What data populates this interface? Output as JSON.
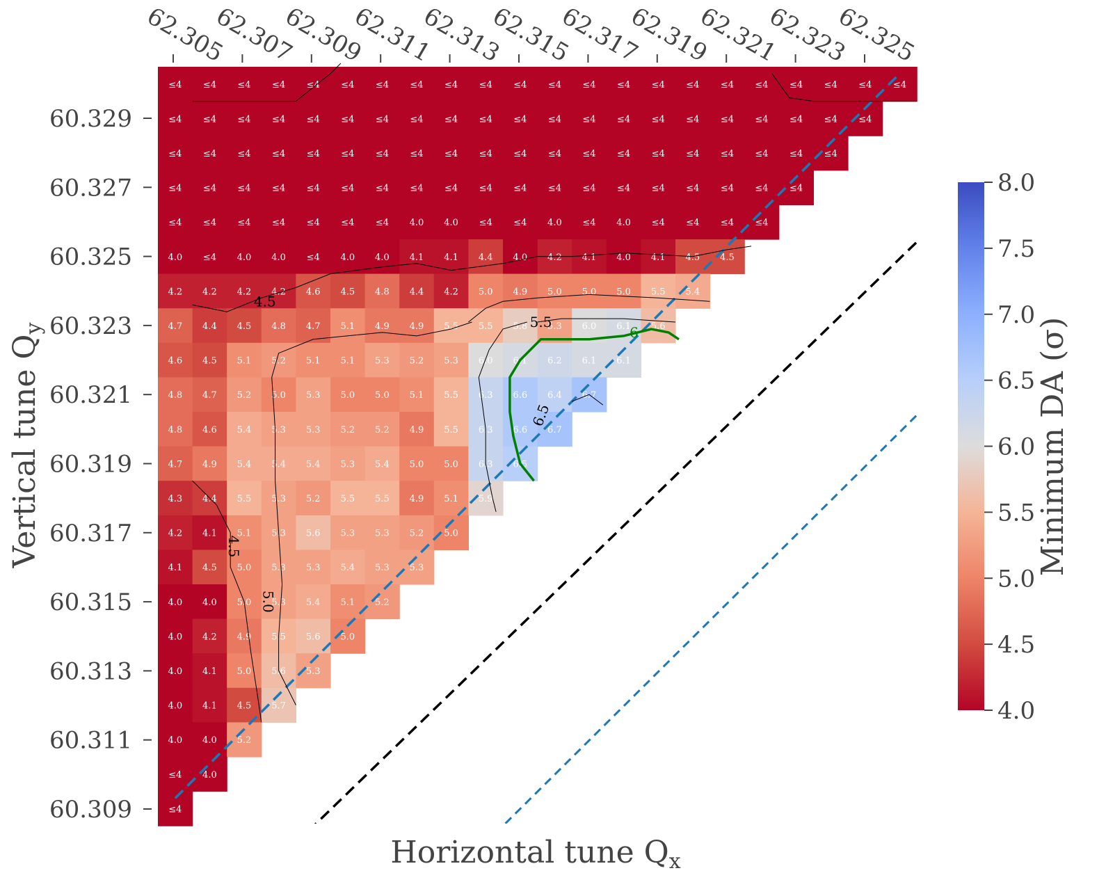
{
  "chart_data": {
    "type": "heatmap",
    "title": "",
    "xlabel": "Horizontal tune Q",
    "xlabel_sub": "x",
    "ylabel": "Vertical tune Q",
    "ylabel_sub": "y",
    "colorbar_label": "Minimum DA (σ)",
    "colorbar_range": [
      4.0,
      8.0
    ],
    "colorbar_ticks": [
      "4.0",
      "4.5",
      "5.0",
      "5.5",
      "6.0",
      "6.5",
      "7.0",
      "7.5",
      "8.0"
    ],
    "colormap": "coolwarm_r",
    "x_values": [
      62.305,
      62.306,
      62.307,
      62.308,
      62.309,
      62.31,
      62.311,
      62.312,
      62.313,
      62.314,
      62.315,
      62.316,
      62.317,
      62.318,
      62.319,
      62.32,
      62.321,
      62.322,
      62.323,
      62.324,
      62.325,
      62.326
    ],
    "x_tick_labels": [
      "62.305",
      "62.307",
      "62.309",
      "62.311",
      "62.313",
      "62.315",
      "62.317",
      "62.319",
      "62.321",
      "62.323",
      "62.325"
    ],
    "y_values": [
      60.33,
      60.329,
      60.328,
      60.327,
      60.326,
      60.325,
      60.324,
      60.323,
      60.322,
      60.321,
      60.32,
      60.319,
      60.318,
      60.317,
      60.316,
      60.315,
      60.314,
      60.313,
      60.312,
      60.311,
      60.31,
      60.309
    ],
    "y_tick_labels": [
      "60.329",
      "60.327",
      "60.325",
      "60.323",
      "60.321",
      "60.319",
      "60.317",
      "60.315",
      "60.313",
      "60.311",
      "60.309"
    ],
    "rows": [
      [
        "≤4",
        "≤4",
        "≤4",
        "≤4",
        "≤4",
        "≤4",
        "≤4",
        "≤4",
        "≤4",
        "≤4",
        "≤4",
        "≤4",
        "≤4",
        "≤4",
        "≤4",
        "≤4",
        "≤4",
        "≤4",
        "≤4",
        "≤4",
        "≤4",
        "≤4"
      ],
      [
        "≤4",
        "≤4",
        "≤4",
        "≤4",
        "≤4",
        "≤4",
        "≤4",
        "≤4",
        "≤4",
        "≤4",
        "≤4",
        "≤4",
        "≤4",
        "≤4",
        "≤4",
        "≤4",
        "≤4",
        "≤4",
        "≤4",
        "≤4",
        "≤4"
      ],
      [
        "≤4",
        "≤4",
        "≤4",
        "≤4",
        "≤4",
        "≤4",
        "≤4",
        "≤4",
        "≤4",
        "≤4",
        "≤4",
        "≤4",
        "≤4",
        "≤4",
        "≤4",
        "≤4",
        "≤4",
        "≤4",
        "≤4",
        "≤4"
      ],
      [
        "≤4",
        "≤4",
        "≤4",
        "≤4",
        "≤4",
        "≤4",
        "≤4",
        "≤4",
        "≤4",
        "≤4",
        "≤4",
        "≤4",
        "≤4",
        "≤4",
        "≤4",
        "≤4",
        "≤4",
        "≤4",
        "≤4"
      ],
      [
        "≤4",
        "≤4",
        "≤4",
        "≤4",
        "≤4",
        "≤4",
        "≤4",
        "4.0",
        "4.0",
        "≤4",
        "≤4",
        "4.0",
        "≤4",
        "4.0",
        "≤4",
        "≤4",
        "≤4",
        "≤4"
      ],
      [
        "4.0",
        "≤4",
        "4.0",
        "4.0",
        "≤4",
        "4.0",
        "4.0",
        "4.1",
        "4.1",
        "4.4",
        "4.0",
        "4.2",
        "4.1",
        "4.0",
        "4.1",
        "4.5",
        "4.5"
      ],
      [
        "4.2",
        "4.2",
        "4.2",
        "4.2",
        "4.6",
        "4.5",
        "4.8",
        "4.4",
        "4.2",
        "5.0",
        "4.9",
        "5.0",
        "5.0",
        "5.0",
        "5.5",
        "5.4"
      ],
      [
        "4.7",
        "4.4",
        "4.5",
        "4.8",
        "4.7",
        "5.1",
        "4.9",
        "4.9",
        "5.5",
        "5.5",
        "5.8",
        "5.3",
        "6.0",
        "6.1",
        "5.6"
      ],
      [
        "4.6",
        "4.5",
        "5.1",
        "5.2",
        "5.1",
        "5.1",
        "5.3",
        "5.2",
        "5.3",
        "6.0",
        "6.1",
        "6.2",
        "6.1",
        "6.1"
      ],
      [
        "4.8",
        "4.7",
        "5.2",
        "5.0",
        "5.3",
        "5.0",
        "5.0",
        "5.1",
        "5.5",
        "6.3",
        "6.6",
        "6.4",
        "6.7"
      ],
      [
        "4.8",
        "4.6",
        "5.4",
        "5.3",
        "5.3",
        "5.2",
        "5.2",
        "4.9",
        "5.5",
        "6.3",
        "6.6",
        "6.7"
      ],
      [
        "4.7",
        "4.9",
        "5.4",
        "5.4",
        "5.4",
        "5.3",
        "5.4",
        "5.0",
        "5.0",
        "6.3",
        "6.5"
      ],
      [
        "4.3",
        "4.4",
        "5.5",
        "5.3",
        "5.2",
        "5.5",
        "5.5",
        "4.9",
        "5.1",
        "5.9"
      ],
      [
        "4.2",
        "4.1",
        "5.1",
        "5.3",
        "5.6",
        "5.3",
        "5.3",
        "5.2",
        "5.0"
      ],
      [
        "4.1",
        "4.5",
        "5.0",
        "5.3",
        "5.3",
        "5.4",
        "5.3",
        "5.3"
      ],
      [
        "4.0",
        "4.0",
        "5.0",
        "5.3",
        "5.4",
        "5.1",
        "5.2"
      ],
      [
        "4.0",
        "4.2",
        "4.9",
        "5.5",
        "5.6",
        "5.0"
      ],
      [
        "4.0",
        "4.1",
        "5.0",
        "5.6",
        "5.3"
      ],
      [
        "4.0",
        "4.1",
        "4.5",
        "5.7"
      ],
      [
        "4.0",
        "4.0",
        "5.2"
      ],
      [
        "≤4",
        "4.0"
      ],
      [
        "≤4"
      ]
    ],
    "contour_labels": [
      "4.5",
      "5.0",
      "5.5",
      "6.5",
      "6",
      "4.5"
    ],
    "legend": "none",
    "grid": false
  }
}
